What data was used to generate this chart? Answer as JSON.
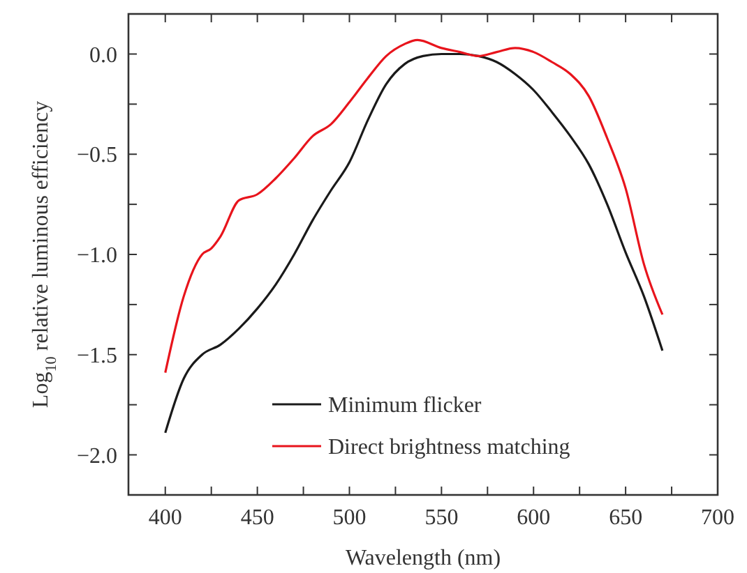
{
  "chart_data": {
    "type": "line",
    "xlabel": "Wavelength (nm)",
    "ylabel": "Log$_{10}$ relative luminous efficiency",
    "xlim": [
      380,
      700
    ],
    "ylim": [
      -2.2,
      0.2
    ],
    "xticks": [
      400,
      {
        "value": 425,
        "label": null
      },
      450,
      {
        "value": 475,
        "label": null
      },
      500,
      {
        "value": 525,
        "label": null
      },
      550,
      {
        "value": 575,
        "label": null
      },
      600,
      {
        "value": 625,
        "label": null
      },
      650,
      {
        "value": 675,
        "label": null
      },
      700
    ],
    "yticks": [
      {
        "value": -2,
        "label": "−2.0"
      },
      {
        "value": -1.75,
        "label": null
      },
      {
        "value": -1.5,
        "label": "−1.5"
      },
      {
        "value": -1.25,
        "label": null
      },
      {
        "value": -1,
        "label": "−1.0"
      },
      {
        "value": -0.75,
        "label": null
      },
      {
        "value": -0.5,
        "label": "−0.5"
      },
      {
        "value": -0.25,
        "label": null
      },
      {
        "value": 0,
        "label": "0.0"
      }
    ],
    "grid": false,
    "legend": "bottom",
    "line_style": "solid",
    "series": [
      {
        "name": "Minimum flicker",
        "color": "#1a1a1a",
        "x": [
          400,
          410,
          420,
          430,
          440,
          450,
          460,
          470,
          480,
          490,
          500,
          510,
          520,
          530,
          540,
          550,
          560,
          570,
          580,
          590,
          600,
          610,
          620,
          630,
          640,
          650,
          660,
          670
        ],
        "values": [
          -1.89,
          -1.62,
          -1.5,
          -1.45,
          -1.37,
          -1.27,
          -1.15,
          -1.0,
          -0.83,
          -0.68,
          -0.54,
          -0.33,
          -0.15,
          -0.05,
          -0.01,
          0.0,
          0.0,
          -0.01,
          -0.04,
          -0.1,
          -0.18,
          -0.29,
          -0.41,
          -0.55,
          -0.75,
          -0.99,
          -1.21,
          -1.48
        ]
      },
      {
        "name": "Direct brightness matching",
        "color": "#e8141c",
        "x": [
          400,
          410,
          420,
          425,
          430,
          440,
          450,
          460,
          470,
          480,
          490,
          500,
          510,
          520,
          530,
          537,
          550,
          560,
          570,
          580,
          590,
          600,
          610,
          620,
          630,
          640,
          650,
          660,
          670
        ],
        "values": [
          -1.59,
          -1.21,
          -1.0,
          -0.97,
          -0.91,
          -0.73,
          -0.7,
          -0.62,
          -0.52,
          -0.41,
          -0.35,
          -0.24,
          -0.12,
          -0.01,
          0.05,
          0.07,
          0.03,
          0.01,
          -0.01,
          0.01,
          0.03,
          0.01,
          -0.04,
          -0.1,
          -0.21,
          -0.42,
          -0.67,
          -1.05,
          -1.3
        ]
      }
    ]
  }
}
